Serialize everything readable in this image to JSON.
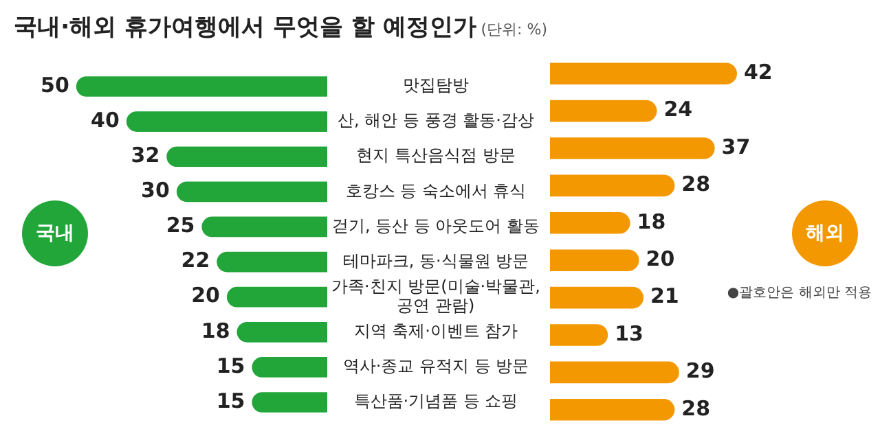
{
  "chart_data": [
    {
      "type": "bar",
      "orientation": "horizontal",
      "title": "국내·해외 휴가여행에서 무엇을 할 예정인가",
      "subtitle": "(단위: %)",
      "categories": [
        "맛집탐방",
        "산, 해안 등 풍경 활동·감상",
        "현지 특산음식점 방문",
        "호캉스 등 숙소에서 휴식",
        "걷기, 등산 등 아웃도어 활동",
        "테마파크, 동·식물원 방문",
        "가족·친지 방문(미술·박물관, 공연 관람)",
        "지역 축제·이벤트 참가",
        "역사·종교 유적지 등 방문",
        "특산품·기념품 등 쇼핑"
      ],
      "series": [
        {
          "name": "국내",
          "color": "#22a63a",
          "values": [
            50,
            40,
            32,
            30,
            25,
            22,
            20,
            18,
            15,
            15
          ]
        }
      ],
      "data_labels": true,
      "tick_labels": "y",
      "legend": "left"
    },
    {
      "type": "bar",
      "orientation": "horizontal",
      "categories": [
        null,
        null,
        null,
        null,
        null,
        null,
        null,
        null,
        null,
        null
      ],
      "series": [
        {
          "name": "해외",
          "color": "#f39800",
          "values": [
            42,
            24,
            37,
            28,
            18,
            20,
            21,
            13,
            29,
            28
          ]
        }
      ],
      "data_labels": true,
      "tick_labels": false,
      "legend": "right",
      "annotations": [
        "●괄호안은 해외만 적용"
      ]
    }
  ]
}
